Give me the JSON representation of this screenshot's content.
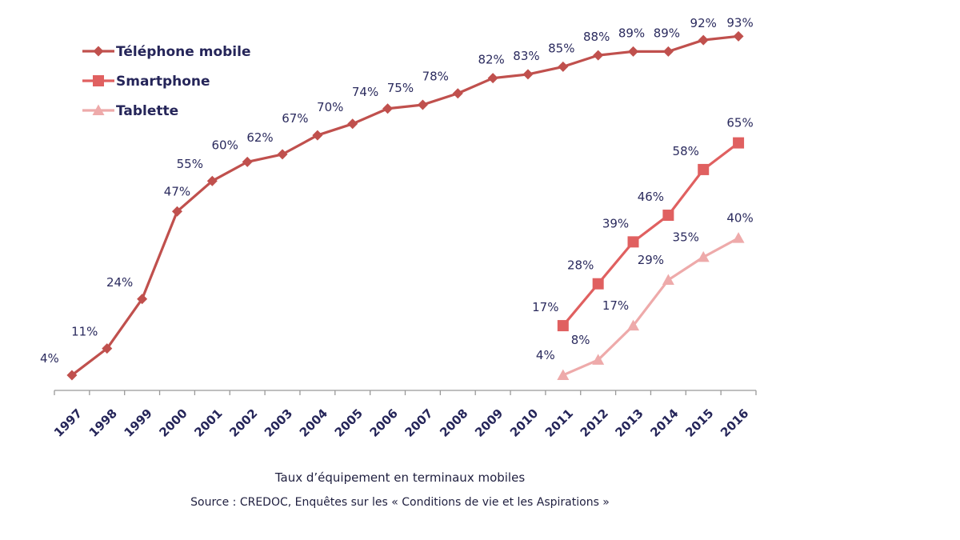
{
  "chart_data": {
    "type": "line",
    "title": "Taux d’équipement en terminaux mobiles",
    "source": "Source : CREDOC, Enquêtes sur les « Conditions de vie et les Aspirations »",
    "xlabel": "",
    "ylabel": "",
    "ylim": [
      0,
      100
    ],
    "grid": false,
    "legend_position": "top-left",
    "categories": [
      "1997",
      "1998",
      "1999",
      "2000",
      "2001",
      "2002",
      "2003",
      "2004",
      "2005",
      "2006",
      "2007",
      "2008",
      "2009",
      "2010",
      "2011",
      "2012",
      "2013",
      "2014",
      "2015",
      "2016"
    ],
    "series": [
      {
        "name": "Téléphone mobile",
        "marker": "diamond",
        "color": "#c0504d",
        "values": [
          4,
          11,
          24,
          47,
          55,
          60,
          62,
          67,
          70,
          74,
          75,
          78,
          82,
          83,
          85,
          88,
          89,
          89,
          92,
          93
        ]
      },
      {
        "name": "Smartphone",
        "marker": "square",
        "color": "#e06060",
        "values": [
          null,
          null,
          null,
          null,
          null,
          null,
          null,
          null,
          null,
          null,
          null,
          null,
          null,
          null,
          17,
          28,
          39,
          46,
          58,
          65
        ]
      },
      {
        "name": "Tablette",
        "marker": "triangle",
        "color": "#eeaaaa",
        "values": [
          null,
          null,
          null,
          null,
          null,
          null,
          null,
          null,
          null,
          null,
          null,
          null,
          null,
          null,
          4,
          8,
          17,
          29,
          35,
          40
        ]
      }
    ],
    "label_suffix": "%"
  },
  "colors": {
    "label_text": "#2b2b5e",
    "axis": "#999999"
  }
}
